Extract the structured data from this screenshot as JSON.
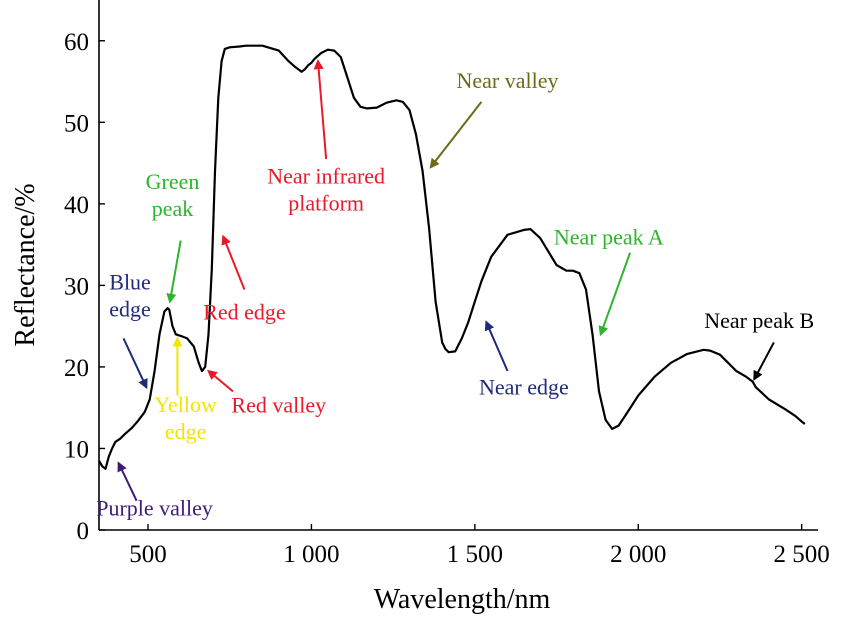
{
  "chart_data": {
    "type": "line",
    "xlabel": "Wavelength/nm",
    "ylabel": "Reflectance/%",
    "xlim": [
      350,
      2550
    ],
    "ylim": [
      0,
      65
    ],
    "grid": false,
    "x_ticks": [
      {
        "value": 500,
        "label": "500"
      },
      {
        "value": 1000,
        "label": "1 000"
      },
      {
        "value": 1500,
        "label": "1 500"
      },
      {
        "value": 2000,
        "label": "2 000"
      },
      {
        "value": 2500,
        "label": "2 500"
      }
    ],
    "y_ticks": [
      {
        "value": 0,
        "label": "0"
      },
      {
        "value": 10,
        "label": "10"
      },
      {
        "value": 20,
        "label": "20"
      },
      {
        "value": 30,
        "label": "30"
      },
      {
        "value": 40,
        "label": "40"
      },
      {
        "value": 50,
        "label": "50"
      },
      {
        "value": 60,
        "label": "60"
      }
    ],
    "series": [
      {
        "color": "#000000",
        "x": [
          350,
          360,
          370,
          380,
          390,
          400,
          415,
          430,
          450,
          470,
          490,
          505,
          520,
          535,
          550,
          560,
          565,
          575,
          585,
          600,
          620,
          640,
          655,
          665,
          675,
          685,
          695,
          705,
          715,
          725,
          735,
          750,
          780,
          800,
          850,
          900,
          930,
          950,
          970,
          980,
          990,
          1000,
          1010,
          1030,
          1050,
          1070,
          1090,
          1110,
          1130,
          1150,
          1170,
          1200,
          1230,
          1260,
          1280,
          1300,
          1320,
          1340,
          1360,
          1380,
          1400,
          1410,
          1420,
          1440,
          1460,
          1480,
          1500,
          1520,
          1550,
          1600,
          1650,
          1670,
          1700,
          1750,
          1780,
          1800,
          1820,
          1840,
          1860,
          1880,
          1900,
          1920,
          1940,
          1960,
          2000,
          2050,
          2100,
          2150,
          2200,
          2220,
          2250,
          2300,
          2330,
          2350,
          2360,
          2400,
          2450,
          2480,
          2500,
          2510
        ],
        "y": [
          8.5,
          7.8,
          7.5,
          9.0,
          10.0,
          10.8,
          11.2,
          11.8,
          12.5,
          13.4,
          14.5,
          16.0,
          19.5,
          24.0,
          26.8,
          27.2,
          27.0,
          25.0,
          24.0,
          23.8,
          23.5,
          22.5,
          20.5,
          19.5,
          20.0,
          24.0,
          32.0,
          44.0,
          53.0,
          57.5,
          59.0,
          59.2,
          59.3,
          59.4,
          59.4,
          58.8,
          57.5,
          56.8,
          56.2,
          56.5,
          57.0,
          57.3,
          57.8,
          58.5,
          58.9,
          58.8,
          58.0,
          55.5,
          53.0,
          51.9,
          51.7,
          51.8,
          52.4,
          52.7,
          52.5,
          51.5,
          48.5,
          44.0,
          37.0,
          28.0,
          23.0,
          22.2,
          21.8,
          21.9,
          23.5,
          25.5,
          28.0,
          30.5,
          33.5,
          36.2,
          36.8,
          36.9,
          35.8,
          32.5,
          31.8,
          31.8,
          31.5,
          29.5,
          24.0,
          17.0,
          13.5,
          12.4,
          12.8,
          14.0,
          16.5,
          18.8,
          20.5,
          21.6,
          22.1,
          22.0,
          21.5,
          19.5,
          18.8,
          18.2,
          17.5,
          16.0,
          14.8,
          14.0,
          13.3,
          13.0
        ]
      }
    ],
    "annotations": [
      {
        "lines": [
          "Purple valley"
        ],
        "color": "#3d1a78",
        "tx": 520,
        "ty": 1.8,
        "arrow_from": [
          465,
          3.6
        ],
        "arrow_to": [
          410,
          8.2
        ]
      },
      {
        "lines": [
          "Blue",
          "edge"
        ],
        "color": "#1f2a7a",
        "tx": 445,
        "ty": 29.5,
        "arrow_from": [
          425,
          23.5
        ],
        "arrow_to": [
          495,
          17.5
        ]
      },
      {
        "lines": [
          "Yellow",
          "edge"
        ],
        "color": "#f2e600",
        "tx": 615,
        "ty": 14.5,
        "arrow_from": [
          590,
          16.5
        ],
        "arrow_to": [
          590,
          23.5
        ]
      },
      {
        "lines": [
          "Green",
          "peak"
        ],
        "color": "#2db52d",
        "tx": 575,
        "ty": 41.8,
        "arrow_from": [
          600,
          35.5
        ],
        "arrow_to": [
          567,
          28.0
        ]
      },
      {
        "lines": [
          "Red edge"
        ],
        "color": "#e8192a",
        "tx": 795,
        "ty": 25.8,
        "arrow_from": [
          795,
          29.5
        ],
        "arrow_to": [
          730,
          36.0
        ]
      },
      {
        "lines": [
          "Red valley"
        ],
        "color": "#e8192a",
        "tx": 900,
        "ty": 14.4,
        "arrow_from": [
          760,
          17.0
        ],
        "arrow_to": [
          685,
          19.5
        ]
      },
      {
        "lines": [
          "Near infrared",
          "platform"
        ],
        "color": "#e8192a",
        "tx": 1045,
        "ty": 42.5,
        "arrow_from": [
          1045,
          45.5
        ],
        "arrow_to": [
          1020,
          57.5
        ]
      },
      {
        "lines": [
          "Near valley"
        ],
        "color": "#6b6b1a",
        "tx": 1600,
        "ty": 54.2,
        "arrow_from": [
          1520,
          52.5
        ],
        "arrow_to": [
          1365,
          44.5
        ]
      },
      {
        "lines": [
          "Near edge"
        ],
        "color": "#1f2a7a",
        "tx": 1650,
        "ty": 16.6,
        "arrow_from": [
          1600,
          19.5
        ],
        "arrow_to": [
          1535,
          25.5
        ]
      },
      {
        "lines": [
          "Near peak A"
        ],
        "color": "#2db52d",
        "tx": 1910,
        "ty": 35.0,
        "arrow_from": [
          1975,
          34.0
        ],
        "arrow_to": [
          1885,
          24.0
        ]
      },
      {
        "lines": [
          "Near peak B"
        ],
        "color": "#000000",
        "tx": 2370,
        "ty": 24.8,
        "arrow_from": [
          2415,
          23.0
        ],
        "arrow_to": [
          2355,
          18.5
        ]
      }
    ]
  }
}
